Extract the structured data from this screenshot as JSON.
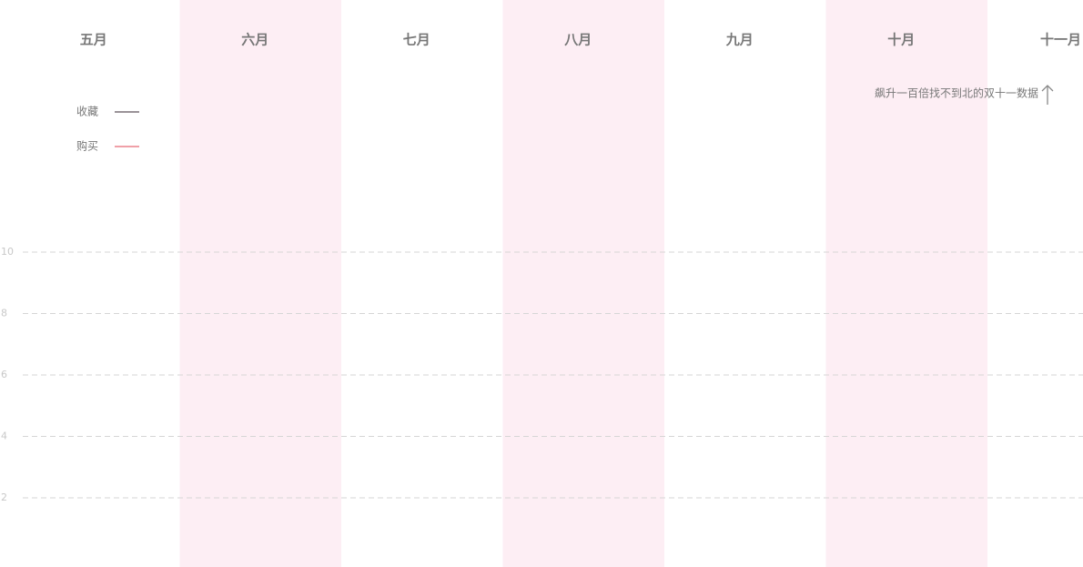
{
  "chart_data": {
    "type": "line",
    "categories": [
      "五月",
      "六月",
      "七月",
      "八月",
      "九月",
      "十月",
      "十一月"
    ],
    "series": [
      {
        "name": "收藏",
        "color": "#9a9398"
      },
      {
        "name": "购买",
        "color": "#f0a0a8"
      }
    ],
    "ylim": [
      0,
      10
    ],
    "yticks": [
      2,
      4,
      6,
      8,
      10
    ],
    "grid": true,
    "annotation": "飙升一百倍找不到北的双十一数据"
  }
}
